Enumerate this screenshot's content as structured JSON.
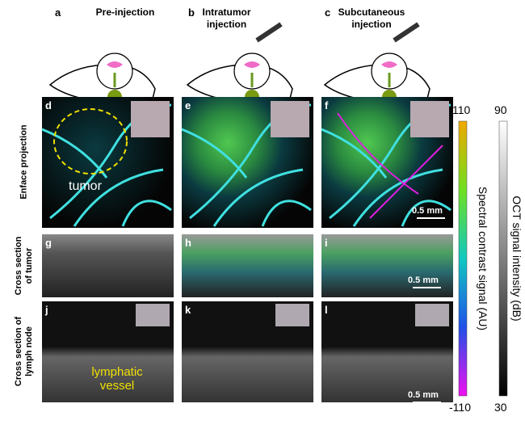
{
  "columns": [
    {
      "letter": "a",
      "title": "Pre-injection"
    },
    {
      "letter": "b",
      "title": "Intratumor injection"
    },
    {
      "letter": "c",
      "title": "Subcutaneous injection"
    }
  ],
  "row_labels": [
    "Enface projection",
    "Cross section of tumor",
    "Cross section of lymph node"
  ],
  "panels": [
    "d",
    "e",
    "f",
    "g",
    "h",
    "i",
    "j",
    "k",
    "l"
  ],
  "annotations": {
    "tumor": "tumor",
    "lymphatic_vessel": "lymphatic vessel",
    "scale_bar": "0.5 mm"
  },
  "colorbars": {
    "spectral": {
      "label": "Spectral contrast signal (AU)",
      "max": 110,
      "min": -110
    },
    "oct": {
      "label": "OCT signal intensity (dB)",
      "max": 90,
      "min": 30
    }
  }
}
